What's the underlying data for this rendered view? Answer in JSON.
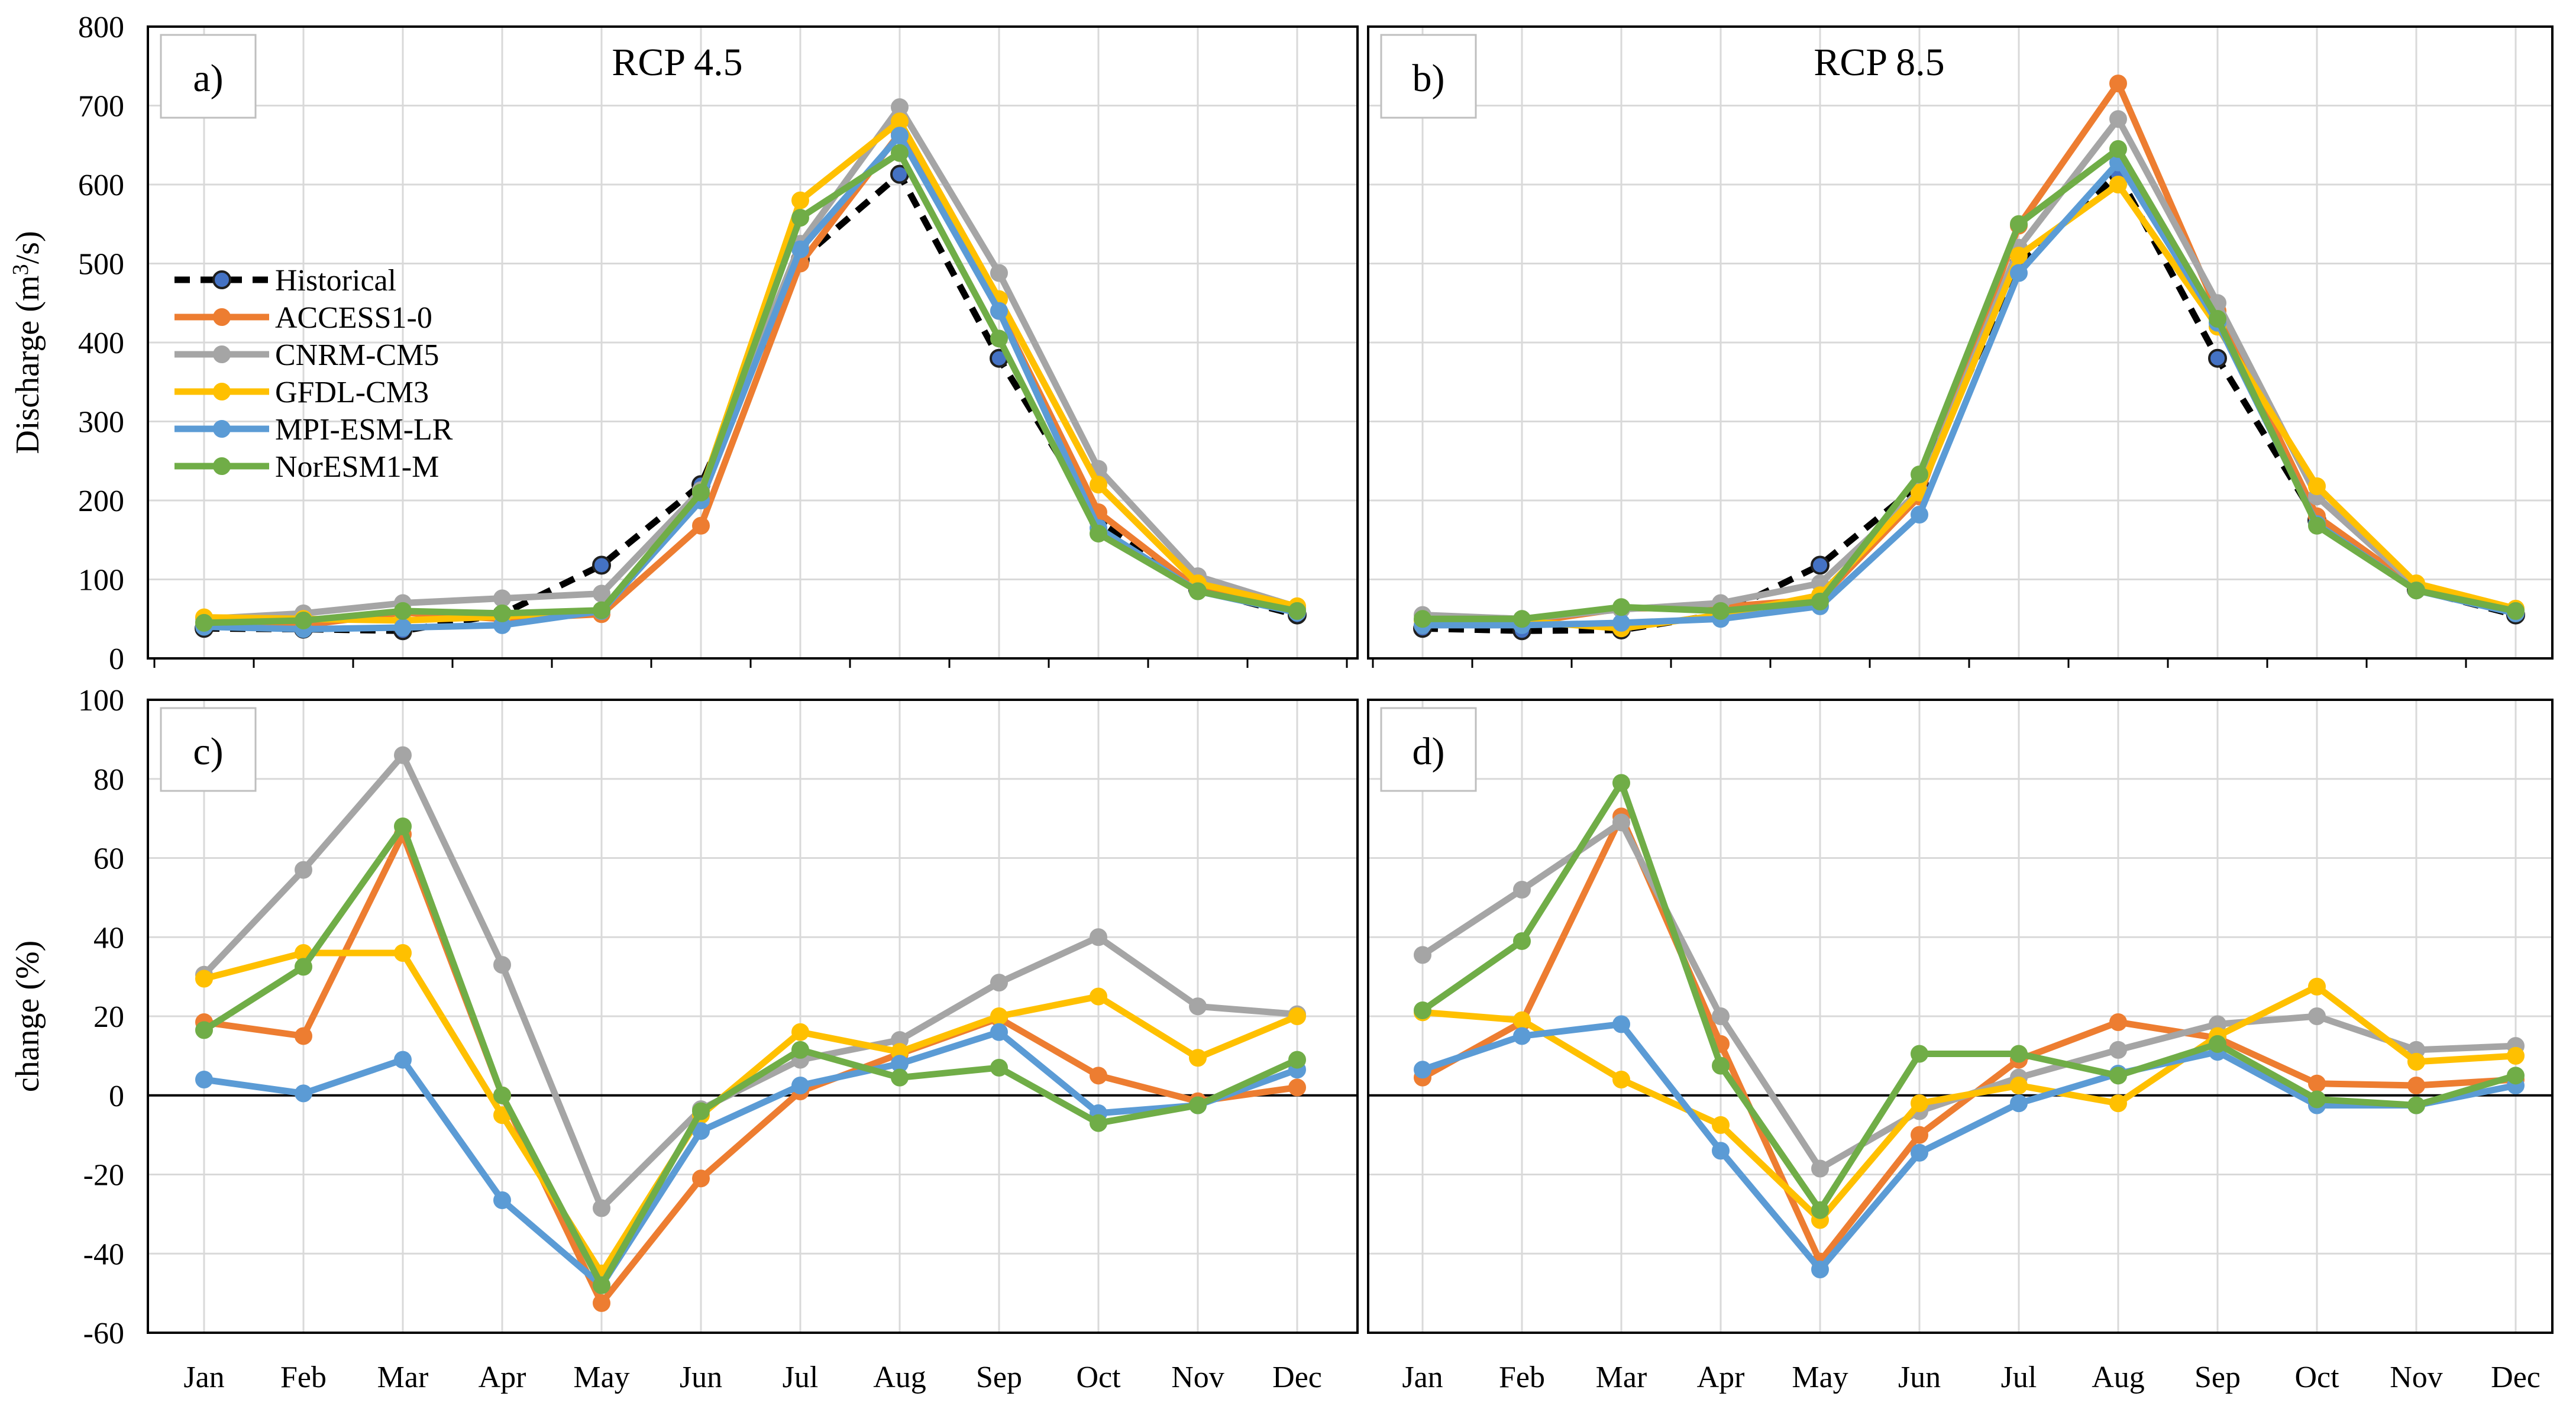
{
  "chart_data": [
    {
      "panel": "a)",
      "type": "line",
      "title": "RCP 4.5",
      "ylabel": "Discharge (m³/s)",
      "ylim": [
        0,
        800
      ],
      "yticks": [
        0,
        100,
        200,
        300,
        400,
        500,
        600,
        700,
        800
      ],
      "categories": [
        "Jan",
        "Feb",
        "Mar",
        "Apr",
        "May",
        "Jun",
        "Jul",
        "Aug",
        "Sep",
        "Oct",
        "Nov",
        "Dec"
      ],
      "legend": "top-left",
      "series": [
        {
          "name": "Historical",
          "color": "#000000",
          "dashed": true,
          "marker": "#4472c4",
          "values": [
            38,
            37,
            35,
            56,
            118,
            220,
            505,
            613,
            380,
            175,
            87,
            55
          ]
        },
        {
          "name": "ACCESS1-0",
          "color": "#ed7d31",
          "values": [
            45,
            42,
            58,
            50,
            56,
            168,
            500,
            665,
            440,
            185,
            88,
            63
          ]
        },
        {
          "name": "CNRM-CM5",
          "color": "#a5a5a5",
          "values": [
            50,
            57,
            70,
            76,
            82,
            213,
            525,
            698,
            488,
            240,
            104,
            65
          ]
        },
        {
          "name": "GFDL-CM3",
          "color": "#ffc000",
          "values": [
            52,
            50,
            48,
            53,
            60,
            210,
            580,
            680,
            455,
            220,
            95,
            66
          ]
        },
        {
          "name": "MPI-ESM-LR",
          "color": "#5b9bd5",
          "values": [
            40,
            37,
            39,
            42,
            60,
            200,
            518,
            662,
            440,
            165,
            85,
            58
          ]
        },
        {
          "name": "NorESM1-M",
          "color": "#70ad47",
          "values": [
            45,
            48,
            60,
            57,
            61,
            210,
            558,
            640,
            405,
            158,
            85,
            60
          ]
        }
      ]
    },
    {
      "panel": "b)",
      "type": "line",
      "title": "RCP 8.5",
      "ylabel": "",
      "ylim": [
        0,
        800
      ],
      "categories": [
        "Jan",
        "Feb",
        "Mar",
        "Apr",
        "May",
        "Jun",
        "Jul",
        "Aug",
        "Sep",
        "Oct",
        "Nov",
        "Dec"
      ],
      "series": [
        {
          "name": "Historical",
          "color": "#000000",
          "dashed": true,
          "marker": "#4472c4",
          "values": [
            38,
            35,
            36,
            56,
            118,
            220,
            500,
            613,
            380,
            175,
            87,
            55
          ]
        },
        {
          "name": "ACCESS1-0",
          "color": "#ed7d31",
          "values": [
            42,
            45,
            63,
            65,
            75,
            205,
            548,
            728,
            440,
            180,
            90,
            58
          ]
        },
        {
          "name": "CNRM-CM5",
          "color": "#a5a5a5",
          "values": [
            55,
            50,
            62,
            70,
            95,
            212,
            520,
            683,
            450,
            205,
            92,
            60
          ]
        },
        {
          "name": "GFDL-CM3",
          "color": "#ffc000",
          "values": [
            48,
            47,
            38,
            55,
            80,
            210,
            510,
            600,
            420,
            218,
            95,
            63
          ]
        },
        {
          "name": "MPI-ESM-LR",
          "color": "#5b9bd5",
          "values": [
            42,
            42,
            45,
            50,
            66,
            182,
            488,
            628,
            425,
            170,
            86,
            57
          ]
        },
        {
          "name": "NorESM1-M",
          "color": "#70ad47",
          "values": [
            50,
            50,
            65,
            60,
            72,
            233,
            550,
            645,
            430,
            168,
            86,
            60
          ]
        }
      ]
    },
    {
      "panel": "c)",
      "type": "line",
      "title": "",
      "ylabel": "change (%)",
      "ylim": [
        -60,
        100
      ],
      "yticks": [
        -60,
        -40,
        -20,
        0,
        20,
        40,
        60,
        80,
        100
      ],
      "categories": [
        "Jan",
        "Feb",
        "Mar",
        "Apr",
        "May",
        "Jun",
        "Jul",
        "Aug",
        "Sep",
        "Oct",
        "Nov",
        "Dec"
      ],
      "series": [
        {
          "name": "ACCESS1-0",
          "color": "#ed7d31",
          "values": [
            18.5,
            15,
            66,
            0,
            -52.5,
            -21,
            1,
            10.5,
            19.5,
            5,
            -1.5,
            2
          ]
        },
        {
          "name": "CNRM-CM5",
          "color": "#a5a5a5",
          "values": [
            30.5,
            57,
            86,
            33,
            -28.5,
            -3.5,
            9,
            14,
            28.5,
            40,
            22.5,
            20.5
          ]
        },
        {
          "name": "GFDL-CM3",
          "color": "#ffc000",
          "values": [
            29.5,
            36,
            36,
            -5,
            -45,
            -5,
            16,
            11,
            20,
            25,
            9.5,
            20
          ]
        },
        {
          "name": "MPI-ESM-LR",
          "color": "#5b9bd5",
          "values": [
            4,
            0.5,
            9,
            -26.5,
            -48,
            -9,
            2.5,
            8,
            16,
            -4.5,
            -2.5,
            6.5
          ]
        },
        {
          "name": "NorESM1-M",
          "color": "#70ad47",
          "values": [
            16.5,
            32.5,
            68,
            0,
            -48,
            -4,
            11.5,
            4.5,
            7,
            -7,
            -2.5,
            9
          ]
        }
      ]
    },
    {
      "panel": "d)",
      "type": "line",
      "title": "",
      "ylabel": "",
      "ylim": [
        -60,
        100
      ],
      "categories": [
        "Jan",
        "Feb",
        "Mar",
        "Apr",
        "May",
        "Jun",
        "Jul",
        "Aug",
        "Sep",
        "Oct",
        "Nov",
        "Dec"
      ],
      "series": [
        {
          "name": "ACCESS1-0",
          "color": "#ed7d31",
          "values": [
            4.5,
            18.5,
            70.5,
            13,
            -42,
            -10,
            9,
            18.5,
            14.5,
            3,
            2.5,
            4
          ]
        },
        {
          "name": "CNRM-CM5",
          "color": "#a5a5a5",
          "values": [
            35.5,
            52,
            69,
            20,
            -18.5,
            -4,
            4.5,
            11.5,
            18,
            20,
            11.5,
            12.5
          ]
        },
        {
          "name": "GFDL-CM3",
          "color": "#ffc000",
          "values": [
            21,
            19,
            4,
            -7.5,
            -31.5,
            -2,
            2.5,
            -2,
            15,
            27.5,
            8.5,
            10
          ]
        },
        {
          "name": "MPI-ESM-LR",
          "color": "#5b9bd5",
          "values": [
            6.5,
            15,
            18,
            -14,
            -44,
            -14.5,
            -2,
            5.5,
            11,
            -2.5,
            -2.5,
            2.5
          ]
        },
        {
          "name": "NorESM1-M",
          "color": "#70ad47",
          "values": [
            21.5,
            39,
            79,
            7.5,
            -29,
            10.5,
            10.5,
            5,
            13,
            -1,
            -2.5,
            5
          ]
        }
      ]
    }
  ]
}
